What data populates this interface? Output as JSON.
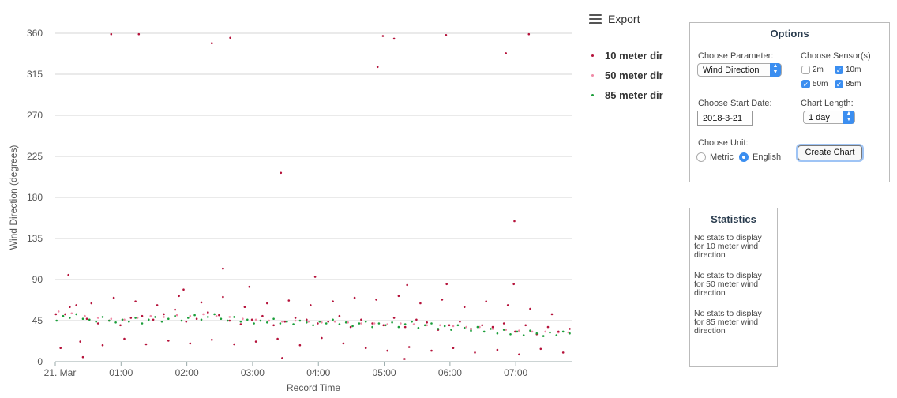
{
  "chart_data": {
    "type": "scatter",
    "title": "",
    "xlabel": "Record Time",
    "ylabel": "Wind Direction (degrees)",
    "x_range_hours": [
      0,
      7.85
    ],
    "ylim": [
      0,
      360
    ],
    "y_ticks": [
      0,
      45,
      90,
      135,
      180,
      225,
      270,
      315,
      360
    ],
    "x_ticks": [
      {
        "value": 0,
        "label": "21. Mar"
      },
      {
        "value": 1,
        "label": "01:00"
      },
      {
        "value": 2,
        "label": "02:00"
      },
      {
        "value": 3,
        "label": "03:00"
      },
      {
        "value": 4,
        "label": "04:00"
      },
      {
        "value": 5,
        "label": "05:00"
      },
      {
        "value": 6,
        "label": "06:00"
      },
      {
        "value": 7,
        "label": "07:00"
      }
    ],
    "grid": "horizontal",
    "legend_position": "top-right",
    "series": [
      {
        "name": "10 meter dir",
        "color": "#b5123a",
        "values": [
          [
            0.01,
            52
          ],
          [
            0.15,
            52
          ],
          [
            0.32,
            62
          ],
          [
            0.48,
            47
          ],
          [
            0.65,
            42
          ],
          [
            0.82,
            45
          ],
          [
            0.99,
            40
          ],
          [
            1.15,
            48
          ],
          [
            1.32,
            50
          ],
          [
            1.49,
            46
          ],
          [
            1.65,
            52
          ],
          [
            1.82,
            57
          ],
          [
            1.99,
            44
          ],
          [
            2.15,
            47
          ],
          [
            2.32,
            54
          ],
          [
            2.49,
            51
          ],
          [
            2.65,
            45
          ],
          [
            2.82,
            41
          ],
          [
            2.99,
            46
          ],
          [
            3.15,
            50
          ],
          [
            3.32,
            40
          ],
          [
            3.49,
            44
          ],
          [
            3.65,
            48
          ],
          [
            3.82,
            46
          ],
          [
            3.99,
            42
          ],
          [
            4.15,
            44
          ],
          [
            4.32,
            50
          ],
          [
            4.49,
            38
          ],
          [
            4.65,
            46
          ],
          [
            4.82,
            42
          ],
          [
            4.99,
            40
          ],
          [
            5.15,
            48
          ],
          [
            5.32,
            38
          ],
          [
            5.49,
            46
          ],
          [
            5.65,
            43
          ],
          [
            5.82,
            35
          ],
          [
            5.99,
            40
          ],
          [
            6.15,
            44
          ],
          [
            6.32,
            36
          ],
          [
            6.49,
            40
          ],
          [
            6.65,
            38
          ],
          [
            6.82,
            42
          ],
          [
            6.99,
            33
          ],
          [
            7.15,
            40
          ],
          [
            7.32,
            30
          ],
          [
            7.49,
            38
          ],
          [
            7.65,
            33
          ],
          [
            7.82,
            36
          ],
          [
            0.08,
            15
          ],
          [
            0.22,
            60
          ],
          [
            0.38,
            22
          ],
          [
            0.55,
            64
          ],
          [
            0.72,
            18
          ],
          [
            0.89,
            70
          ],
          [
            1.05,
            25
          ],
          [
            1.22,
            66
          ],
          [
            1.38,
            19
          ],
          [
            1.55,
            62
          ],
          [
            1.72,
            23
          ],
          [
            1.88,
            72
          ],
          [
            2.05,
            20
          ],
          [
            2.22,
            65
          ],
          [
            2.38,
            24
          ],
          [
            2.55,
            71
          ],
          [
            2.72,
            19
          ],
          [
            2.88,
            60
          ],
          [
            3.05,
            22
          ],
          [
            3.22,
            64
          ],
          [
            3.38,
            25
          ],
          [
            3.55,
            67
          ],
          [
            3.72,
            18
          ],
          [
            3.88,
            62
          ],
          [
            4.05,
            26
          ],
          [
            4.22,
            66
          ],
          [
            4.38,
            20
          ],
          [
            4.55,
            70
          ],
          [
            4.72,
            15
          ],
          [
            4.88,
            68
          ],
          [
            5.05,
            12
          ],
          [
            5.22,
            72
          ],
          [
            5.38,
            16
          ],
          [
            5.55,
            64
          ],
          [
            5.72,
            12
          ],
          [
            5.88,
            68
          ],
          [
            6.05,
            15
          ],
          [
            6.22,
            60
          ],
          [
            6.38,
            10
          ],
          [
            6.55,
            66
          ],
          [
            6.72,
            13
          ],
          [
            6.88,
            62
          ],
          [
            7.05,
            8
          ],
          [
            7.22,
            58
          ],
          [
            7.38,
            14
          ],
          [
            7.55,
            52
          ],
          [
            7.72,
            10
          ],
          [
            0.42,
            5
          ],
          [
            3.45,
            4
          ],
          [
            5.31,
            3
          ],
          [
            0.85,
            359
          ],
          [
            1.27,
            359
          ],
          [
            2.38,
            349
          ],
          [
            2.66,
            355
          ],
          [
            4.98,
            357
          ],
          [
            5.15,
            354
          ],
          [
            5.94,
            358
          ],
          [
            6.85,
            338
          ],
          [
            7.2,
            359
          ],
          [
            4.9,
            323
          ],
          [
            3.43,
            207
          ],
          [
            6.98,
            154
          ],
          [
            0.2,
            95
          ],
          [
            2.55,
            102
          ],
          [
            3.95,
            93
          ],
          [
            5.35,
            84
          ],
          [
            5.95,
            85
          ],
          [
            6.97,
            85
          ],
          [
            2.95,
            82
          ],
          [
            1.95,
            79
          ]
        ]
      },
      {
        "name": "50 meter dir",
        "color": "#f08aa6",
        "values": [
          [
            0.05,
            55
          ],
          [
            0.25,
            53
          ],
          [
            0.45,
            50
          ],
          [
            0.65,
            48
          ],
          [
            0.85,
            47
          ],
          [
            1.05,
            46
          ],
          [
            1.25,
            48
          ],
          [
            1.45,
            50
          ],
          [
            1.65,
            49
          ],
          [
            1.85,
            51
          ],
          [
            2.05,
            50
          ],
          [
            2.25,
            52
          ],
          [
            2.45,
            50
          ],
          [
            2.65,
            49
          ],
          [
            2.85,
            47
          ],
          [
            3.05,
            46
          ],
          [
            3.25,
            45
          ],
          [
            3.45,
            44
          ],
          [
            3.65,
            45
          ],
          [
            3.85,
            44
          ],
          [
            4.05,
            43
          ],
          [
            4.25,
            44
          ],
          [
            4.45,
            43
          ],
          [
            4.65,
            42
          ],
          [
            4.85,
            42
          ],
          [
            5.05,
            41
          ],
          [
            5.25,
            42
          ],
          [
            5.45,
            41
          ],
          [
            5.65,
            40
          ],
          [
            5.85,
            40
          ],
          [
            6.05,
            39
          ],
          [
            6.25,
            38
          ],
          [
            6.45,
            38
          ],
          [
            6.65,
            36
          ],
          [
            6.85,
            35
          ],
          [
            7.05,
            34
          ],
          [
            7.25,
            33
          ],
          [
            7.45,
            33
          ],
          [
            7.65,
            32
          ],
          [
            7.8,
            32
          ]
        ]
      },
      {
        "name": "85 meter dir",
        "color": "#1b9e3a",
        "values": [
          [
            0.02,
            45
          ],
          [
            0.12,
            50
          ],
          [
            0.22,
            48
          ],
          [
            0.32,
            52
          ],
          [
            0.42,
            47
          ],
          [
            0.52,
            46
          ],
          [
            0.62,
            44
          ],
          [
            0.72,
            49
          ],
          [
            0.82,
            45
          ],
          [
            0.92,
            43
          ],
          [
            1.02,
            46
          ],
          [
            1.12,
            44
          ],
          [
            1.22,
            48
          ],
          [
            1.32,
            42
          ],
          [
            1.42,
            46
          ],
          [
            1.52,
            49
          ],
          [
            1.62,
            44
          ],
          [
            1.72,
            47
          ],
          [
            1.82,
            50
          ],
          [
            1.92,
            45
          ],
          [
            2.02,
            48
          ],
          [
            2.12,
            51
          ],
          [
            2.22,
            46
          ],
          [
            2.32,
            49
          ],
          [
            2.42,
            52
          ],
          [
            2.52,
            47
          ],
          [
            2.62,
            45
          ],
          [
            2.72,
            49
          ],
          [
            2.82,
            44
          ],
          [
            2.92,
            46
          ],
          [
            3.02,
            42
          ],
          [
            3.12,
            45
          ],
          [
            3.22,
            43
          ],
          [
            3.32,
            47
          ],
          [
            3.42,
            42
          ],
          [
            3.52,
            44
          ],
          [
            3.62,
            41
          ],
          [
            3.72,
            45
          ],
          [
            3.82,
            43
          ],
          [
            3.92,
            40
          ],
          [
            4.02,
            44
          ],
          [
            4.12,
            42
          ],
          [
            4.22,
            46
          ],
          [
            4.32,
            41
          ],
          [
            4.42,
            43
          ],
          [
            4.52,
            39
          ],
          [
            4.62,
            42
          ],
          [
            4.72,
            44
          ],
          [
            4.82,
            38
          ],
          [
            4.92,
            42
          ],
          [
            5.02,
            40
          ],
          [
            5.12,
            43
          ],
          [
            5.22,
            38
          ],
          [
            5.32,
            41
          ],
          [
            5.42,
            44
          ],
          [
            5.52,
            37
          ],
          [
            5.62,
            40
          ],
          [
            5.72,
            42
          ],
          [
            5.82,
            36
          ],
          [
            5.92,
            39
          ],
          [
            6.02,
            35
          ],
          [
            6.12,
            40
          ],
          [
            6.22,
            37
          ],
          [
            6.32,
            34
          ],
          [
            6.42,
            38
          ],
          [
            6.52,
            33
          ],
          [
            6.62,
            36
          ],
          [
            6.72,
            31
          ],
          [
            6.82,
            35
          ],
          [
            6.92,
            30
          ],
          [
            7.02,
            33
          ],
          [
            7.12,
            29
          ],
          [
            7.22,
            34
          ],
          [
            7.32,
            31
          ],
          [
            7.42,
            28
          ],
          [
            7.52,
            32
          ],
          [
            7.62,
            29
          ],
          [
            7.72,
            33
          ],
          [
            7.82,
            31
          ]
        ]
      }
    ]
  },
  "export": {
    "label": "Export",
    "icon": "hamburger-menu-icon"
  },
  "options": {
    "title": "Options",
    "parameter_label": "Choose Parameter:",
    "parameter_value": "Wind Direction",
    "sensors_label": "Choose Sensor(s)",
    "sensors": [
      {
        "label": "2m",
        "checked": false
      },
      {
        "label": "10m",
        "checked": true
      },
      {
        "label": "50m",
        "checked": true
      },
      {
        "label": "85m",
        "checked": true
      }
    ],
    "start_date_label": "Choose Start Date:",
    "start_date_value": "2018-3-21",
    "length_label": "Chart Length:",
    "length_value": "1 day",
    "unit_label": "Choose Unit:",
    "unit_metric": "Metric",
    "unit_english": "English",
    "unit_selected": "English",
    "create_button": "Create Chart"
  },
  "statistics": {
    "title": "Statistics",
    "messages": [
      "No stats to display for 10 meter wind direction",
      "No stats to display for 50 meter wind direction",
      "No stats to display for 85 meter wind direction"
    ]
  }
}
